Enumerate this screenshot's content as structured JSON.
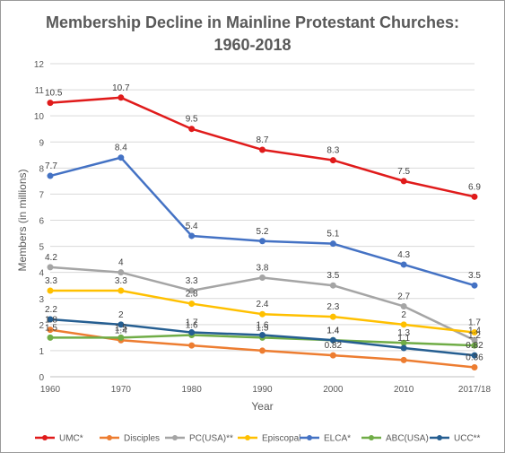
{
  "chart_data": {
    "type": "line",
    "title": "Membership Decline in Mainline Protestant Churches:",
    "subtitle": "1960-2018",
    "xlabel": "Year",
    "ylabel": "Members (in millions)",
    "categories": [
      "1960",
      "1970",
      "1980",
      "1990",
      "2000",
      "2010",
      "2017/18"
    ],
    "ylim": [
      0,
      12
    ],
    "yticks": [
      "0",
      "1",
      "2",
      "3",
      "4",
      "5",
      "6",
      "7",
      "8",
      "9",
      "10",
      "11",
      "12"
    ],
    "grid": true,
    "legend": "bottom",
    "series": [
      {
        "name": "UMC*",
        "color": "#e01b1b",
        "values": [
          10.5,
          10.7,
          9.5,
          8.7,
          8.3,
          7.5,
          6.9
        ],
        "labels": [
          "10.5",
          "10.7",
          "9.5",
          "8.7",
          "8.3",
          "7.5",
          "6.9"
        ]
      },
      {
        "name": "Disciples",
        "color": "#ed7d31",
        "values": [
          1.8,
          1.4,
          1.2,
          1.0,
          0.82,
          0.64,
          0.36
        ],
        "labels": [
          "1.8",
          "1.4",
          "",
          "",
          "0.82",
          "",
          "0.36"
        ]
      },
      {
        "name": "PC(USA)**",
        "color": "#a5a5a5",
        "values": [
          4.2,
          4.0,
          3.3,
          3.8,
          3.5,
          2.7,
          1.4
        ],
        "labels": [
          "4.2",
          "4",
          "3.3",
          "3.8",
          "3.5",
          "2.7",
          "1.4"
        ]
      },
      {
        "name": "Episcopal",
        "color": "#ffc000",
        "values": [
          3.3,
          3.3,
          2.8,
          2.4,
          2.3,
          2.0,
          1.7
        ],
        "labels": [
          "3.3",
          "3.3",
          "2.8",
          "2.4",
          "2.3",
          "2",
          "1.7"
        ]
      },
      {
        "name": "ELCA*",
        "color": "#4472c4",
        "values": [
          7.7,
          8.4,
          5.4,
          5.2,
          5.1,
          4.3,
          3.5
        ],
        "labels": [
          "7.7",
          "8.4",
          "5.4",
          "5.2",
          "5.1",
          "4.3",
          "3.5"
        ]
      },
      {
        "name": "ABC(USA)",
        "color": "#70ad47",
        "values": [
          1.5,
          1.5,
          1.6,
          1.5,
          1.4,
          1.3,
          1.2
        ],
        "labels": [
          "1.5",
          "1.5",
          "1.6",
          "1.5",
          "1.4",
          "1.3",
          "1.2"
        ]
      },
      {
        "name": "UCC**",
        "color": "#255e91",
        "values": [
          2.2,
          2.0,
          1.7,
          1.6,
          1.4,
          1.1,
          0.82
        ],
        "labels": [
          "2.2",
          "2",
          "1.7",
          "1.6",
          "1.4",
          "1.1",
          "0.82"
        ]
      }
    ]
  }
}
